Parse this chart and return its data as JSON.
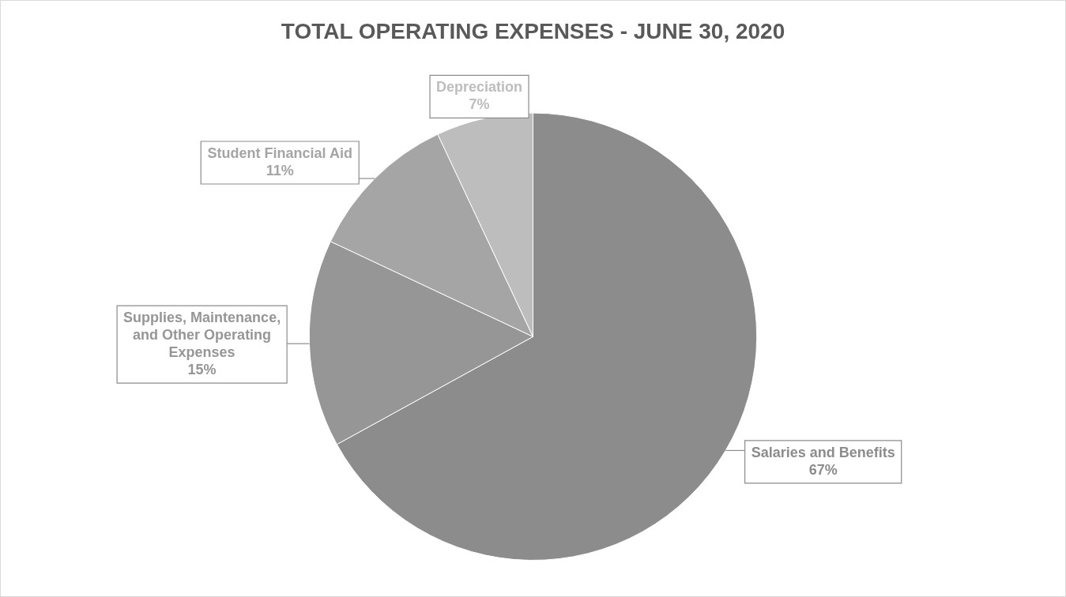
{
  "chart_data": {
    "type": "pie",
    "title": "TOTAL OPERATING EXPENSES - JUNE 30, 2020",
    "categories": [
      "Salaries and Benefits",
      "Supplies, Maintenance, and Other Operating Expenses",
      "Student Financial Aid",
      "Depreciation"
    ],
    "values": [
      67,
      15,
      11,
      7
    ],
    "value_labels": [
      "67%",
      "15%",
      "11%",
      "7%"
    ],
    "colors": [
      "#8c8c8c",
      "#969696",
      "#a5a5a5",
      "#bdbdbd"
    ],
    "legend": false
  }
}
